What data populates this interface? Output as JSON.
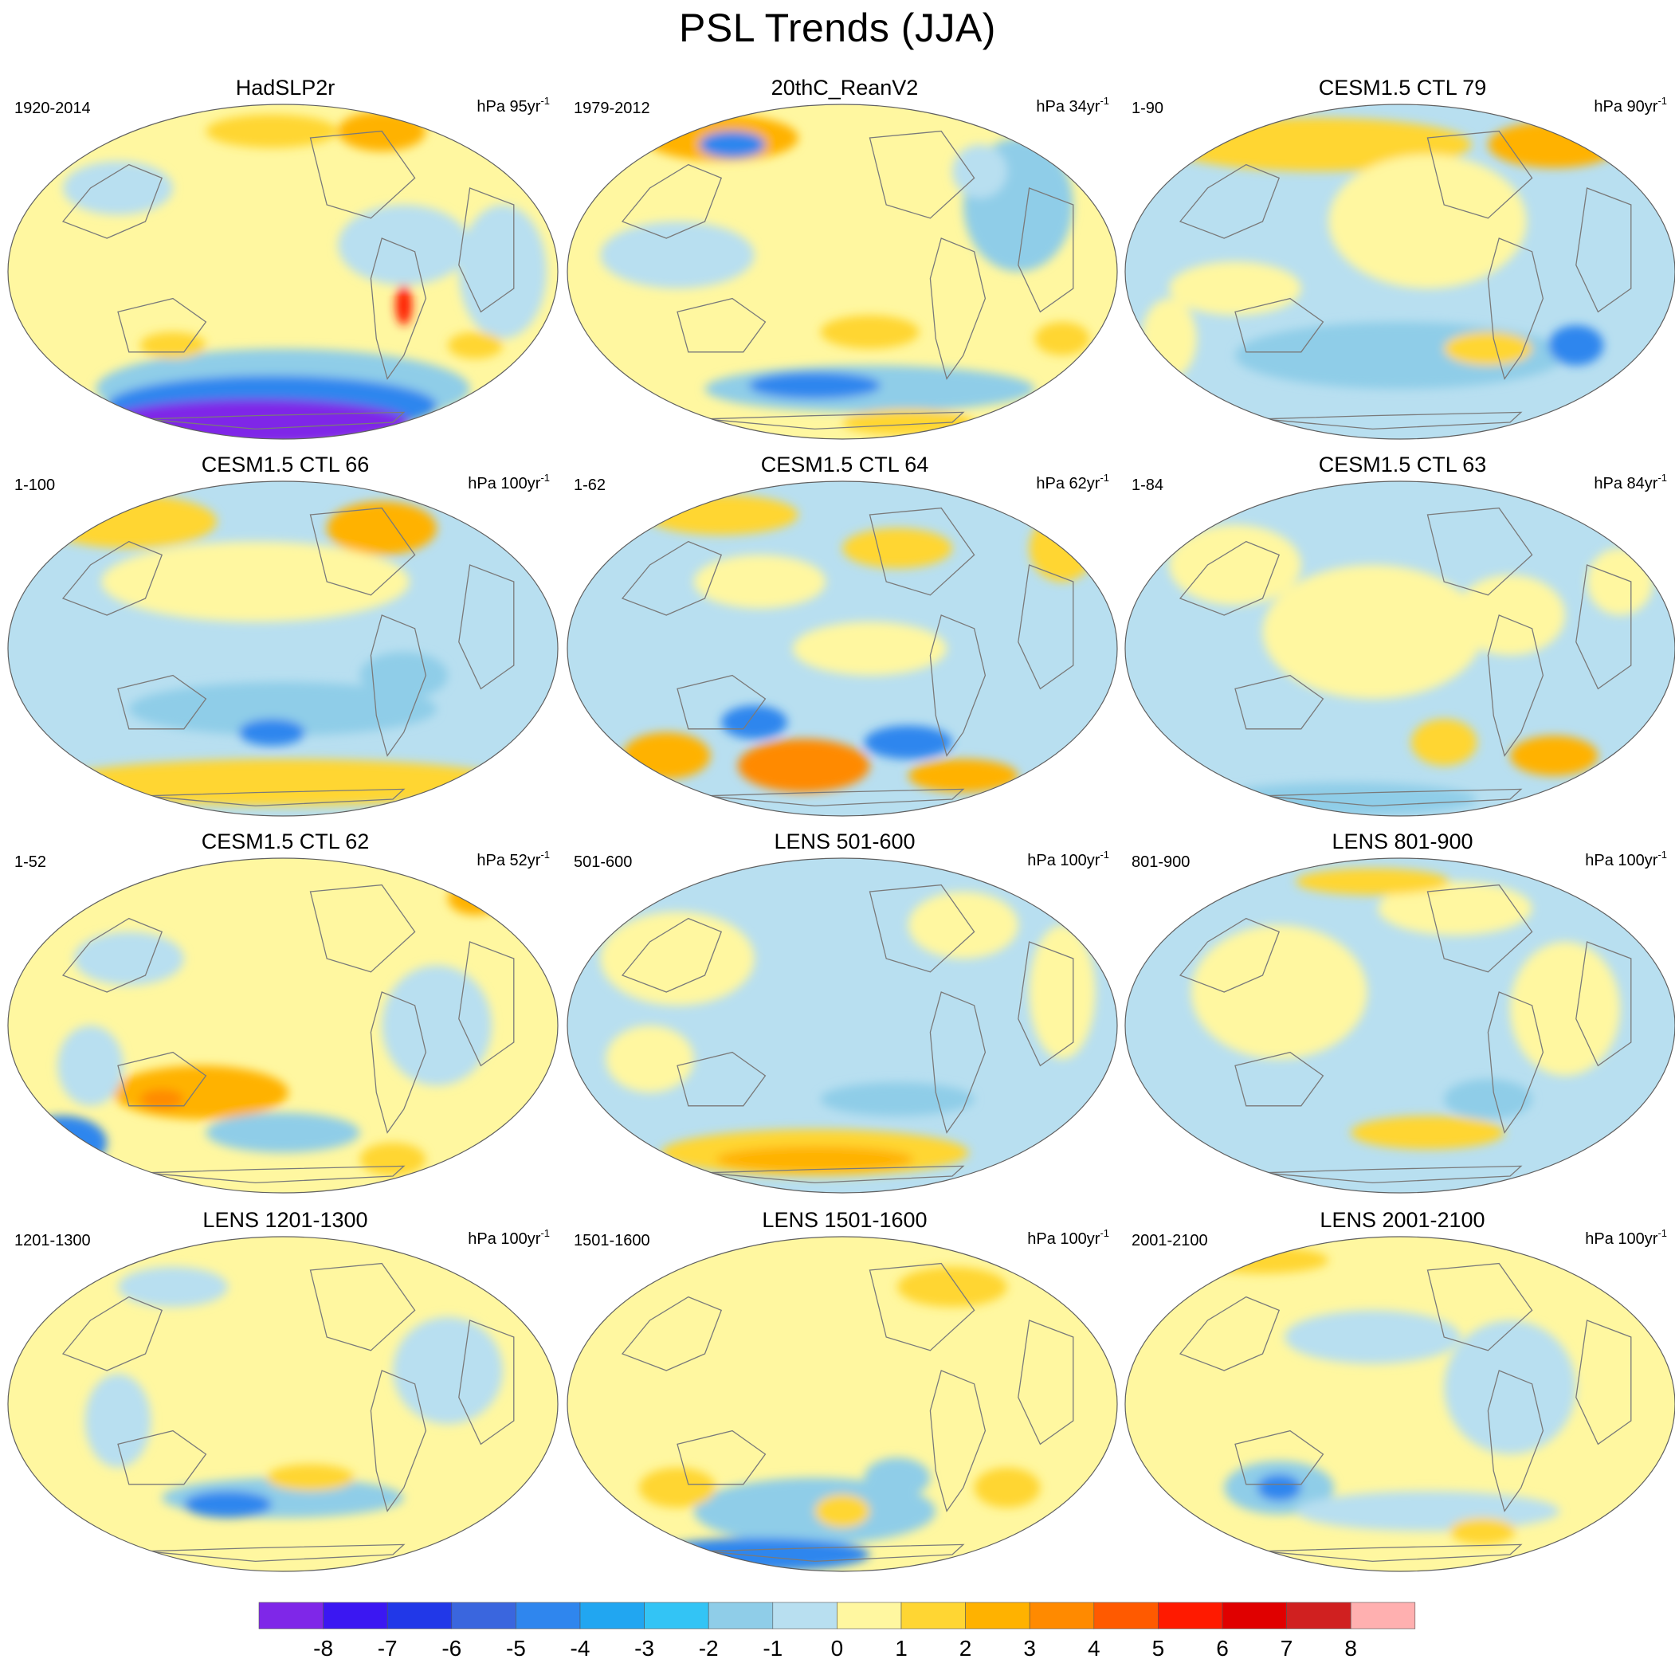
{
  "title": "PSL Trends (JJA)",
  "units_prefix": "hPa",
  "units_suffix": "yr",
  "units_exponent": "-1",
  "colors": {
    "levels": [
      "#7f27e8",
      "#3b17f2",
      "#2138e8",
      "#3a66de",
      "#2f86ee",
      "#21a6f1",
      "#33c4f5",
      "#8fcde8",
      "#b8dff0",
      "#fff7a0",
      "#ffd633",
      "#ffb200",
      "#ff8a00",
      "#ff5a00",
      "#ff1a00",
      "#e00000",
      "#d02020",
      "#ffb0b0"
    ],
    "land_outline": "#7a7a7a",
    "map_border": "#606060"
  },
  "colorbar": {
    "labels": [
      "-8",
      "-7",
      "-6",
      "-5",
      "-4",
      "-3",
      "-2",
      "-1",
      "0",
      "1",
      "2",
      "3",
      "4",
      "5",
      "6",
      "7",
      "8"
    ]
  },
  "panels": [
    {
      "title": "HadSLP2r",
      "period": "1920-2014",
      "span": "95"
    },
    {
      "title": "20thC_ReanV2",
      "period": "1979-2012",
      "span": "34"
    },
    {
      "title": "CESM1.5 CTL 79",
      "period": "1-90",
      "span": "90"
    },
    {
      "title": "CESM1.5 CTL 66",
      "period": "1-100",
      "span": "100"
    },
    {
      "title": "CESM1.5 CTL 64",
      "period": "1-62",
      "span": "62"
    },
    {
      "title": "CESM1.5 CTL 63",
      "period": "1-84",
      "span": "84"
    },
    {
      "title": "CESM1.5 CTL 62",
      "period": "1-52",
      "span": "52"
    },
    {
      "title": "LENS 501-600",
      "period": "501-600",
      "span": "100"
    },
    {
      "title": "LENS 801-900",
      "period": "801-900",
      "span": "100"
    },
    {
      "title": "LENS 1201-1300",
      "period": "1201-1300",
      "span": "100"
    },
    {
      "title": "LENS 1501-1600",
      "period": "1501-1600",
      "span": "100"
    },
    {
      "title": "LENS 2001-2100",
      "period": "2001-2100",
      "span": "100"
    }
  ]
}
